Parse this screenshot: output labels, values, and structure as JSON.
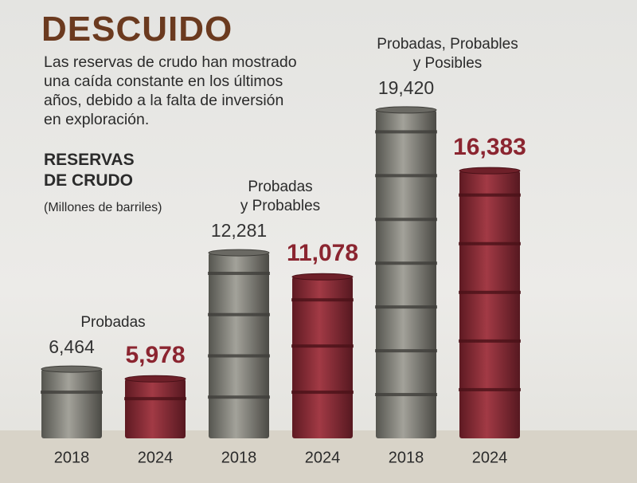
{
  "header": {
    "title": "DESCUIDO",
    "subtitle": "Las reservas de crudo han mostrado\nuna caída constante en los últimos\naños, debido a la falta de inversión\nen exploración."
  },
  "chart_data": {
    "type": "barrel",
    "y_label": "RESERVAS\nDE CRUDO",
    "units": "(Millones de barriles)",
    "categories": [
      "Probadas",
      "Probadas\ny Probables",
      "Probadas, Probables\ny Posibles"
    ],
    "series": [
      {
        "name": "2018",
        "color": "#7d7c74",
        "values": [
          6464,
          12281,
          19420
        ],
        "value_labels": [
          "6,464",
          "12,281",
          "19,420"
        ]
      },
      {
        "name": "2024",
        "color": "#8b2a35",
        "values": [
          5978,
          11078,
          16383
        ],
        "value_labels": [
          "5,978",
          "11,078",
          "16,383"
        ]
      }
    ],
    "ylim": [
      3000,
      24000
    ]
  }
}
